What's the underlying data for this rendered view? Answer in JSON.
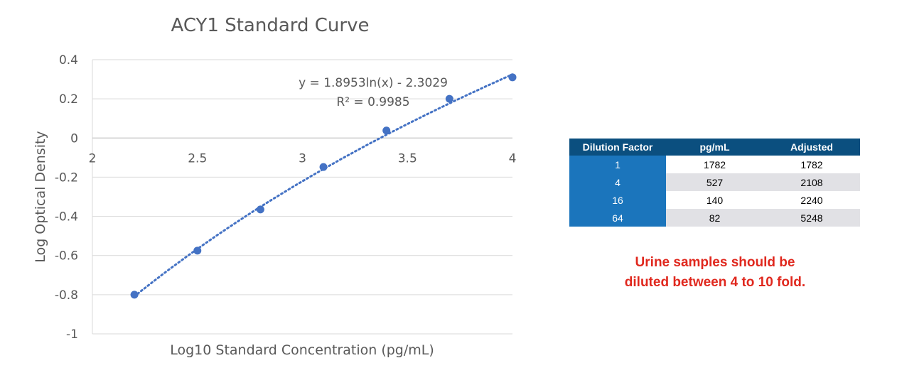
{
  "chart_data": {
    "type": "scatter",
    "title": "ACY1 Standard Curve",
    "xlabel": "Log10 Standard Concentration (pg/mL)",
    "ylabel": "Log Optical Density",
    "xlim": [
      2,
      4
    ],
    "ylim": [
      -1,
      0.4
    ],
    "x_ticks": [
      "2",
      "2.5",
      "3",
      "3.5",
      "4"
    ],
    "y_ticks": [
      "0.4",
      "0.2",
      "0",
      "-0.2",
      "-0.4",
      "-0.6",
      "-0.8",
      "-1"
    ],
    "series": [
      {
        "x": [
          2.2,
          2.5,
          2.8,
          3.1,
          3.4,
          3.7,
          4.0
        ],
        "y": [
          -0.8,
          -0.575,
          -0.365,
          -0.148,
          0.038,
          0.2,
          0.31
        ]
      }
    ],
    "trendline": {
      "type": "logarithmic",
      "equation": "y = 1.8953ln(x) - 2.3029",
      "r_squared": "R² = 0.9985",
      "a": 1.8953,
      "b": -2.3029
    },
    "grid": true,
    "color": "#4472c4"
  },
  "table": {
    "headers": [
      "Dilution Factor",
      "pg/mL",
      "Adjusted"
    ],
    "rows": [
      [
        "1",
        "1782",
        "1782"
      ],
      [
        "4",
        "527",
        "2108"
      ],
      [
        "16",
        "140",
        "2240"
      ],
      [
        "64",
        "82",
        "5248"
      ]
    ]
  },
  "note": {
    "line1": "Urine samples should be",
    "line2": "diluted between 4 to 10 fold."
  },
  "colors": {
    "header_bg": "#0b4f7f",
    "dilution_bg": "#1b75bc",
    "note": "#e0281e",
    "series": "#4472c4"
  }
}
